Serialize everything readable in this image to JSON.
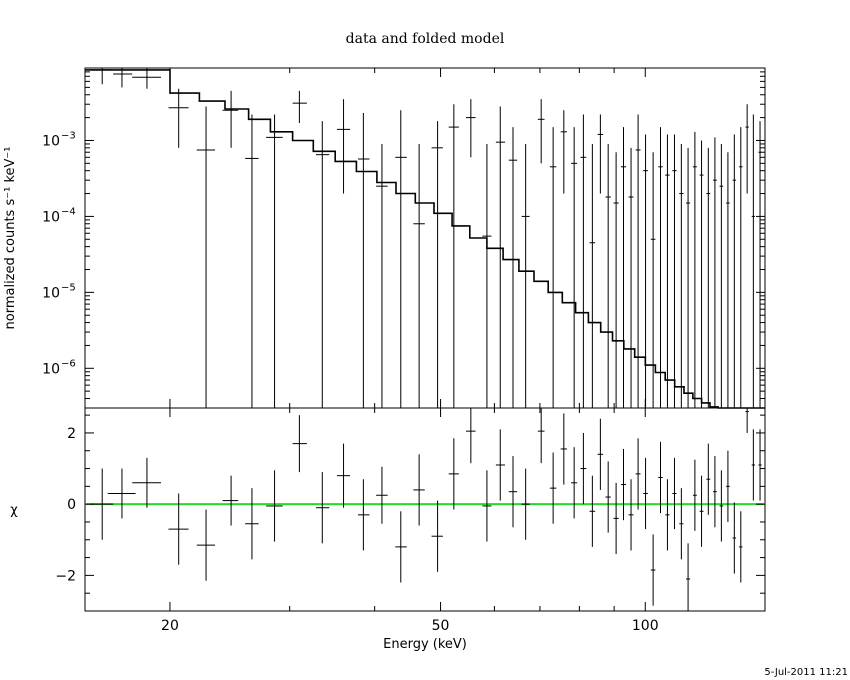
{
  "chart_data": [
    {
      "type": "scatter",
      "title": "data and folded model",
      "xlabel": "",
      "ylabel": "normalized counts s⁻¹ keV⁻¹",
      "x_scale": "log",
      "y_scale": "log",
      "xlim": [
        15,
        150
      ],
      "ylim": [
        3e-07,
        0.009
      ],
      "y_ticks": [
        {
          "value": 1e-06,
          "mantissa": "10",
          "exp": "−6"
        },
        {
          "value": 1e-05,
          "mantissa": "10",
          "exp": "−5"
        },
        {
          "value": 0.0001,
          "mantissa": "10",
          "exp": "−4"
        },
        {
          "value": 0.001,
          "mantissa": "10",
          "exp": "−3"
        }
      ],
      "series": [
        {
          "kind": "data-with-errors",
          "points": [
            {
              "x": 15.9,
              "xlo": 15.3,
              "xhi": 16.5,
              "y": 0.0085,
              "ylo": 0.0055,
              "yhi": 0.009
            },
            {
              "x": 17.0,
              "xlo": 16.5,
              "xhi": 17.6,
              "y": 0.0075,
              "ylo": 0.005,
              "yhi": 0.009
            },
            {
              "x": 18.5,
              "xlo": 17.6,
              "xhi": 19.4,
              "y": 0.0068,
              "ylo": 0.0048,
              "yhi": 0.009
            },
            {
              "x": 20.6,
              "xlo": 19.9,
              "xhi": 21.3,
              "y": 0.0027,
              "ylo": 0.0008,
              "yhi": 0.0048
            },
            {
              "x": 22.6,
              "xlo": 21.9,
              "xhi": 23.3,
              "y": 0.00075,
              "ylo": 3e-07,
              "yhi": 0.0028
            },
            {
              "x": 24.6,
              "xlo": 23.9,
              "xhi": 25.2,
              "y": 0.0025,
              "ylo": 0.0008,
              "yhi": 0.0045
            },
            {
              "x": 26.4,
              "xlo": 25.8,
              "xhi": 27.0,
              "y": 0.00058,
              "ylo": 3e-07,
              "yhi": 0.0022
            },
            {
              "x": 28.5,
              "xlo": 27.7,
              "xhi": 29.3,
              "y": 0.0011,
              "ylo": 3e-07,
              "yhi": 0.0022
            },
            {
              "x": 31.0,
              "xlo": 30.3,
              "xhi": 31.8,
              "y": 0.0031,
              "ylo": 0.0017,
              "yhi": 0.0045
            },
            {
              "x": 33.5,
              "xlo": 32.8,
              "xhi": 34.3,
              "y": 0.00065,
              "ylo": 3e-07,
              "yhi": 0.0018
            },
            {
              "x": 36.0,
              "xlo": 35.2,
              "xhi": 36.8,
              "y": 0.0014,
              "ylo": 0.0002,
              "yhi": 0.0035
            },
            {
              "x": 38.5,
              "xlo": 37.8,
              "xhi": 39.3,
              "y": 0.00057,
              "ylo": 3e-07,
              "yhi": 0.0023
            },
            {
              "x": 41.0,
              "xlo": 40.2,
              "xhi": 41.8,
              "y": 0.00025,
              "ylo": 3e-07,
              "yhi": 0.0009
            },
            {
              "x": 43.7,
              "xlo": 42.9,
              "xhi": 44.6,
              "y": 0.0006,
              "ylo": 3e-07,
              "yhi": 0.0025
            },
            {
              "x": 46.5,
              "xlo": 45.6,
              "xhi": 47.4,
              "y": 8e-05,
              "ylo": 3e-07,
              "yhi": 0.0009
            },
            {
              "x": 49.5,
              "xlo": 48.5,
              "xhi": 50.4,
              "y": 0.0008,
              "ylo": 3e-07,
              "yhi": 0.0018
            },
            {
              "x": 52.3,
              "xlo": 51.4,
              "xhi": 53.2,
              "y": 0.0015,
              "ylo": 3e-07,
              "yhi": 0.003
            },
            {
              "x": 55.4,
              "xlo": 54.5,
              "xhi": 56.3,
              "y": 0.002,
              "ylo": 0.0006,
              "yhi": 0.0035
            },
            {
              "x": 58.5,
              "xlo": 57.6,
              "xhi": 59.4,
              "y": 5.5e-05,
              "ylo": 3e-07,
              "yhi": 0.0009
            },
            {
              "x": 61.2,
              "xlo": 60.3,
              "xhi": 62.2,
              "y": 0.00095,
              "ylo": 3e-07,
              "yhi": 0.0028
            },
            {
              "x": 63.9,
              "xlo": 63.0,
              "xhi": 64.8,
              "y": 0.00055,
              "ylo": 3e-07,
              "yhi": 0.0015
            },
            {
              "x": 66.7,
              "xlo": 65.8,
              "xhi": 67.6,
              "y": 0.0001,
              "ylo": 3e-07,
              "yhi": 0.0009
            },
            {
              "x": 70.3,
              "xlo": 69.5,
              "xhi": 71.1,
              "y": 0.0019,
              "ylo": 0.0005,
              "yhi": 0.0035
            },
            {
              "x": 73.2,
              "xlo": 72.4,
              "xhi": 74.0,
              "y": 0.00045,
              "ylo": 3e-07,
              "yhi": 0.0015
            },
            {
              "x": 75.9,
              "xlo": 75.1,
              "xhi": 76.7,
              "y": 0.0013,
              "ylo": 0.0002,
              "yhi": 0.0025
            },
            {
              "x": 78.6,
              "xlo": 77.8,
              "xhi": 79.4,
              "y": 0.0005,
              "ylo": 3e-07,
              "yhi": 0.0015
            },
            {
              "x": 81.1,
              "xlo": 80.3,
              "xhi": 81.9,
              "y": 0.0006,
              "ylo": 3e-07,
              "yhi": 0.0022
            },
            {
              "x": 83.6,
              "xlo": 82.8,
              "xhi": 84.4,
              "y": 4.5e-05,
              "ylo": 3e-07,
              "yhi": 0.0009
            },
            {
              "x": 85.9,
              "xlo": 85.1,
              "xhi": 86.7,
              "y": 0.0012,
              "ylo": 0.0002,
              "yhi": 0.0022
            },
            {
              "x": 88.2,
              "xlo": 87.4,
              "xhi": 89.0,
              "y": 0.00018,
              "ylo": 3e-07,
              "yhi": 0.0009
            },
            {
              "x": 90.6,
              "xlo": 89.8,
              "xhi": 91.4,
              "y": 0.00015,
              "ylo": 3e-07,
              "yhi": 0.0007
            },
            {
              "x": 92.9,
              "xlo": 92.1,
              "xhi": 93.7,
              "y": 0.00045,
              "ylo": 3e-07,
              "yhi": 0.0015
            },
            {
              "x": 95.3,
              "xlo": 94.5,
              "xhi": 96.1,
              "y": 0.00018,
              "ylo": 3e-07,
              "yhi": 0.0008
            },
            {
              "x": 97.6,
              "xlo": 96.8,
              "xhi": 98.4,
              "y": 0.00075,
              "ylo": 3e-07,
              "yhi": 0.0022
            },
            {
              "x": 100.1,
              "xlo": 99.3,
              "xhi": 100.9,
              "y": 0.0004,
              "ylo": 3e-07,
              "yhi": 0.0012
            },
            {
              "x": 102.7,
              "xlo": 101.9,
              "xhi": 103.5,
              "y": 5e-05,
              "ylo": 3e-07,
              "yhi": 0.0007
            },
            {
              "x": 105.3,
              "xlo": 104.5,
              "xhi": 106.1,
              "y": 0.00045,
              "ylo": 3e-07,
              "yhi": 0.0015
            },
            {
              "x": 107.8,
              "xlo": 107.0,
              "xhi": 108.6,
              "y": 0.00035,
              "ylo": 3e-07,
              "yhi": 0.0012
            },
            {
              "x": 110.4,
              "xlo": 109.6,
              "xhi": 111.2,
              "y": 0.0004,
              "ylo": 3e-07,
              "yhi": 0.0012
            },
            {
              "x": 113.0,
              "xlo": 112.2,
              "xhi": 113.8,
              "y": 0.0002,
              "ylo": 3e-07,
              "yhi": 0.0009
            },
            {
              "x": 115.6,
              "xlo": 114.8,
              "xhi": 116.4,
              "y": 0.00015,
              "ylo": 3e-07,
              "yhi": 0.0008
            },
            {
              "x": 118.3,
              "xlo": 117.5,
              "xhi": 119.1,
              "y": 0.00045,
              "ylo": 3e-07,
              "yhi": 0.0013
            },
            {
              "x": 121.0,
              "xlo": 120.2,
              "xhi": 121.8,
              "y": 0.00035,
              "ylo": 3e-07,
              "yhi": 0.001
            },
            {
              "x": 123.8,
              "xlo": 123.0,
              "xhi": 124.6,
              "y": 0.0002,
              "ylo": 3e-07,
              "yhi": 0.0008
            },
            {
              "x": 126.6,
              "xlo": 125.8,
              "xhi": 127.4,
              "y": 0.0003,
              "ylo": 3e-07,
              "yhi": 0.0011
            },
            {
              "x": 129.4,
              "xlo": 128.6,
              "xhi": 130.2,
              "y": 0.00025,
              "ylo": 3e-07,
              "yhi": 0.0009
            },
            {
              "x": 132.3,
              "xlo": 131.5,
              "xhi": 133.1,
              "y": 0.00015,
              "ylo": 3e-07,
              "yhi": 0.0007
            },
            {
              "x": 135.2,
              "xlo": 134.4,
              "xhi": 136.0,
              "y": 0.0003,
              "ylo": 3e-07,
              "yhi": 0.0012
            },
            {
              "x": 138.2,
              "xlo": 137.4,
              "xhi": 139.0,
              "y": 0.00045,
              "ylo": 3e-07,
              "yhi": 0.0015
            },
            {
              "x": 141.2,
              "xlo": 140.4,
              "xhi": 142.0,
              "y": 0.0015,
              "ylo": 0.0002,
              "yhi": 0.003
            },
            {
              "x": 144.2,
              "xlo": 143.4,
              "xhi": 145.0,
              "y": 0.0001,
              "ylo": 3e-07,
              "yhi": 0.0022
            },
            {
              "x": 147.5,
              "xlo": 146.7,
              "xhi": 148.3,
              "y": 0.0007,
              "ylo": 3e-07,
              "yhi": 0.0018
            }
          ]
        },
        {
          "kind": "folded-model-step",
          "x_edges": [
            15,
            20,
            22.1,
            24.1,
            26.1,
            28.1,
            30.3,
            32.5,
            35,
            37.6,
            40.3,
            43,
            45.9,
            48.9,
            52,
            55.2,
            58.5,
            61.8,
            65.2,
            68.6,
            72,
            75.5,
            79,
            82.5,
            86,
            89.5,
            93,
            96.5,
            100,
            103.5,
            107,
            110.5,
            114,
            117.5,
            121,
            124.5,
            128,
            131.5,
            135,
            138.5,
            142,
            145.5,
            150
          ],
          "y": [
            0.0085,
            0.0042,
            0.0033,
            0.0026,
            0.0019,
            0.0013,
            0.001,
            0.00072,
            0.00053,
            0.00039,
            0.00028,
            0.0002,
            0.00015,
            0.00011,
            7.5e-05,
            5.2e-05,
            3.8e-05,
            2.7e-05,
            1.9e-05,
            1.4e-05,
            1e-05,
            7.3e-06,
            5.4e-06,
            4e-06,
            3e-06,
            2.3e-06,
            1.8e-06,
            1.4e-06,
            1.1e-06,
            8.8e-07,
            7e-07,
            5.7e-07,
            4.7e-07,
            4e-07,
            3.5e-07,
            3.1e-07,
            2.8e-07,
            2.6e-07,
            2.5e-07,
            2.4e-07,
            2.3e-07,
            2.2e-07
          ]
        }
      ]
    },
    {
      "type": "scatter",
      "title": "",
      "xlabel": "Energy (keV)",
      "ylabel": "χ",
      "x_scale": "log",
      "xlim": [
        15,
        150
      ],
      "ylim": [
        -3,
        2.7
      ],
      "x_ticks": [
        20,
        50,
        100
      ],
      "y_ticks": [
        -2,
        0,
        2
      ],
      "zero_line_color": "#22dd22",
      "points": [
        {
          "x": 15.9,
          "xlo": 15.3,
          "xhi": 16.5,
          "y": 0.0,
          "err": 1.0
        },
        {
          "x": 17.0,
          "xlo": 16.2,
          "xhi": 17.8,
          "y": 0.3,
          "err": 0.7
        },
        {
          "x": 18.5,
          "xlo": 17.6,
          "xhi": 19.4,
          "y": 0.6,
          "err": 0.7
        },
        {
          "x": 20.6,
          "xlo": 19.9,
          "xhi": 21.3,
          "y": -0.7,
          "err": 1.0
        },
        {
          "x": 22.6,
          "xlo": 21.9,
          "xhi": 23.3,
          "y": -1.15,
          "err": 1.0
        },
        {
          "x": 24.6,
          "xlo": 23.9,
          "xhi": 25.2,
          "y": 0.1,
          "err": 0.7
        },
        {
          "x": 26.4,
          "xlo": 25.8,
          "xhi": 27.0,
          "y": -0.55,
          "err": 1.0
        },
        {
          "x": 28.5,
          "xlo": 27.7,
          "xhi": 29.3,
          "y": -0.05,
          "err": 1.0
        },
        {
          "x": 31.0,
          "xlo": 30.3,
          "xhi": 31.8,
          "y": 1.7,
          "err": 0.8
        },
        {
          "x": 33.5,
          "xlo": 32.8,
          "xhi": 34.3,
          "y": -0.1,
          "err": 1.0
        },
        {
          "x": 36.0,
          "xlo": 35.2,
          "xhi": 36.8,
          "y": 0.8,
          "err": 0.9
        },
        {
          "x": 38.5,
          "xlo": 37.8,
          "xhi": 39.3,
          "y": -0.3,
          "err": 1.0
        },
        {
          "x": 41.0,
          "xlo": 40.2,
          "xhi": 41.8,
          "y": 0.25,
          "err": 0.8
        },
        {
          "x": 43.7,
          "xlo": 42.9,
          "xhi": 44.6,
          "y": -1.2,
          "err": 1.0
        },
        {
          "x": 46.5,
          "xlo": 45.6,
          "xhi": 47.4,
          "y": 0.4,
          "err": 1.0
        },
        {
          "x": 49.5,
          "xlo": 48.5,
          "xhi": 50.4,
          "y": -0.9,
          "err": 1.0
        },
        {
          "x": 52.3,
          "xlo": 51.4,
          "xhi": 53.2,
          "y": 0.85,
          "err": 1.0
        },
        {
          "x": 55.4,
          "xlo": 54.5,
          "xhi": 56.3,
          "y": 2.05,
          "err": 0.9
        },
        {
          "x": 58.5,
          "xlo": 57.6,
          "xhi": 59.4,
          "y": -0.05,
          "err": 1.0
        },
        {
          "x": 61.2,
          "xlo": 60.3,
          "xhi": 62.2,
          "y": 1.1,
          "err": 1.0
        },
        {
          "x": 63.9,
          "xlo": 63.0,
          "xhi": 64.8,
          "y": 0.35,
          "err": 1.0
        },
        {
          "x": 66.7,
          "xlo": 65.8,
          "xhi": 67.6,
          "y": 0.0,
          "err": 1.0
        },
        {
          "x": 70.3,
          "xlo": 69.5,
          "xhi": 71.1,
          "y": 2.05,
          "err": 0.9
        },
        {
          "x": 73.2,
          "xlo": 72.4,
          "xhi": 74.0,
          "y": 0.45,
          "err": 1.0
        },
        {
          "x": 75.9,
          "xlo": 75.1,
          "xhi": 76.7,
          "y": 1.55,
          "err": 1.0
        },
        {
          "x": 78.6,
          "xlo": 77.8,
          "xhi": 79.4,
          "y": 0.6,
          "err": 1.0
        },
        {
          "x": 81.1,
          "xlo": 80.3,
          "xhi": 81.9,
          "y": 1.0,
          "err": 1.0
        },
        {
          "x": 83.6,
          "xlo": 82.8,
          "xhi": 84.4,
          "y": -0.2,
          "err": 1.0
        },
        {
          "x": 85.9,
          "xlo": 85.1,
          "xhi": 86.7,
          "y": 1.4,
          "err": 1.0
        },
        {
          "x": 88.2,
          "xlo": 87.4,
          "xhi": 89.0,
          "y": 0.2,
          "err": 1.0
        },
        {
          "x": 90.6,
          "xlo": 89.8,
          "xhi": 91.4,
          "y": -0.4,
          "err": 1.0
        },
        {
          "x": 92.9,
          "xlo": 92.1,
          "xhi": 93.7,
          "y": 0.55,
          "err": 1.0
        },
        {
          "x": 95.3,
          "xlo": 94.5,
          "xhi": 96.1,
          "y": -0.3,
          "err": 1.0
        },
        {
          "x": 97.6,
          "xlo": 96.8,
          "xhi": 98.4,
          "y": 0.85,
          "err": 1.0
        },
        {
          "x": 100.1,
          "xlo": 99.3,
          "xhi": 100.9,
          "y": 0.3,
          "err": 1.0
        },
        {
          "x": 102.7,
          "xlo": 101.9,
          "xhi": 103.5,
          "y": -1.85,
          "err": 1.0
        },
        {
          "x": 105.3,
          "xlo": 104.5,
          "xhi": 106.1,
          "y": 0.75,
          "err": 1.0
        },
        {
          "x": 107.8,
          "xlo": 107.0,
          "xhi": 108.6,
          "y": -0.3,
          "err": 1.0
        },
        {
          "x": 110.4,
          "xlo": 109.6,
          "xhi": 111.2,
          "y": 0.3,
          "err": 1.0
        },
        {
          "x": 113.0,
          "xlo": 112.2,
          "xhi": 113.8,
          "y": -0.55,
          "err": 1.0
        },
        {
          "x": 115.6,
          "xlo": 114.8,
          "xhi": 116.4,
          "y": -2.1,
          "err": 1.0
        },
        {
          "x": 118.3,
          "xlo": 117.5,
          "xhi": 119.1,
          "y": 0.25,
          "err": 1.0
        },
        {
          "x": 121.0,
          "xlo": 120.2,
          "xhi": 121.8,
          "y": -0.2,
          "err": 1.0
        },
        {
          "x": 123.8,
          "xlo": 123.0,
          "xhi": 124.6,
          "y": 0.7,
          "err": 1.0
        },
        {
          "x": 126.6,
          "xlo": 125.8,
          "xhi": 127.4,
          "y": 0.35,
          "err": 1.0
        },
        {
          "x": 129.4,
          "xlo": 128.6,
          "xhi": 130.2,
          "y": -0.05,
          "err": 1.0
        },
        {
          "x": 132.3,
          "xlo": 131.5,
          "xhi": 133.1,
          "y": 0.5,
          "err": 1.0
        },
        {
          "x": 135.2,
          "xlo": 134.4,
          "xhi": 136.0,
          "y": -0.95,
          "err": 1.0
        },
        {
          "x": 138.2,
          "xlo": 137.4,
          "xhi": 139.0,
          "y": -1.2,
          "err": 1.0
        },
        {
          "x": 141.2,
          "xlo": 140.4,
          "xhi": 142.0,
          "y": 2.6,
          "err": 0.6
        },
        {
          "x": 144.2,
          "xlo": 143.4,
          "xhi": 145.0,
          "y": 1.1,
          "err": 1.0
        },
        {
          "x": 147.5,
          "xlo": 146.7,
          "xhi": 148.3,
          "y": 1.1,
          "err": 1.0
        }
      ]
    }
  ],
  "timestamp": "5-Jul-2011 11:21"
}
